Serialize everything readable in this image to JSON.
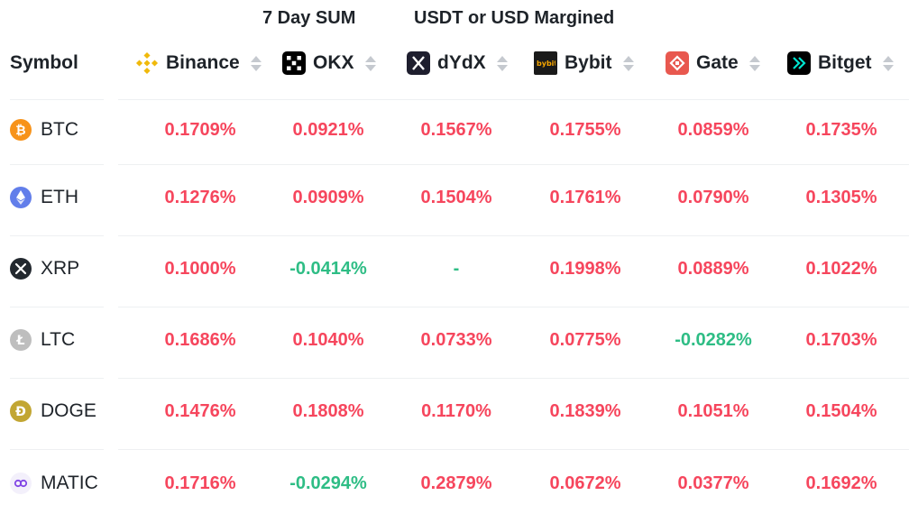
{
  "header": {
    "period_label": "7 Day SUM",
    "margin_label": "USDT or USD Margined",
    "symbol_label": "Symbol"
  },
  "exchanges": [
    {
      "name": "Binance",
      "icon": "binance-icon",
      "color": "#f0b90b"
    },
    {
      "name": "OKX",
      "icon": "okx-icon",
      "color": "#000000"
    },
    {
      "name": "dYdX",
      "icon": "dydx-icon",
      "color": "#1e1e2e"
    },
    {
      "name": "Bybit",
      "icon": "bybit-icon",
      "color": "#1a1a1a"
    },
    {
      "name": "Gate",
      "icon": "gate-icon",
      "color": "#e8584f"
    },
    {
      "name": "Bitget",
      "icon": "bitget-icon",
      "color": "#00c2c8"
    }
  ],
  "rows": [
    {
      "symbol": "BTC",
      "icon": "btc-icon",
      "values": [
        "0.1709%",
        "0.0921%",
        "0.1567%",
        "0.1755%",
        "0.0859%",
        "0.1735%"
      ]
    },
    {
      "symbol": "ETH",
      "icon": "eth-icon",
      "values": [
        "0.1276%",
        "0.0909%",
        "0.1504%",
        "0.1761%",
        "0.0790%",
        "0.1305%"
      ]
    },
    {
      "symbol": "XRP",
      "icon": "xrp-icon",
      "values": [
        "0.1000%",
        "-0.0414%",
        "-",
        "0.1998%",
        "0.0889%",
        "0.1022%"
      ]
    },
    {
      "symbol": "LTC",
      "icon": "ltc-icon",
      "values": [
        "0.1686%",
        "0.1040%",
        "0.0733%",
        "0.0775%",
        "-0.0282%",
        "0.1703%"
      ]
    },
    {
      "symbol": "DOGE",
      "icon": "doge-icon",
      "values": [
        "0.1476%",
        "0.1808%",
        "0.1170%",
        "0.1839%",
        "0.1051%",
        "0.1504%"
      ]
    },
    {
      "symbol": "MATIC",
      "icon": "matic-icon",
      "values": [
        "0.1716%",
        "-0.0294%",
        "0.2879%",
        "0.0672%",
        "0.0377%",
        "0.1692%"
      ]
    }
  ],
  "colors": {
    "positive": "#f6465d",
    "negative": "#2ebd85"
  }
}
